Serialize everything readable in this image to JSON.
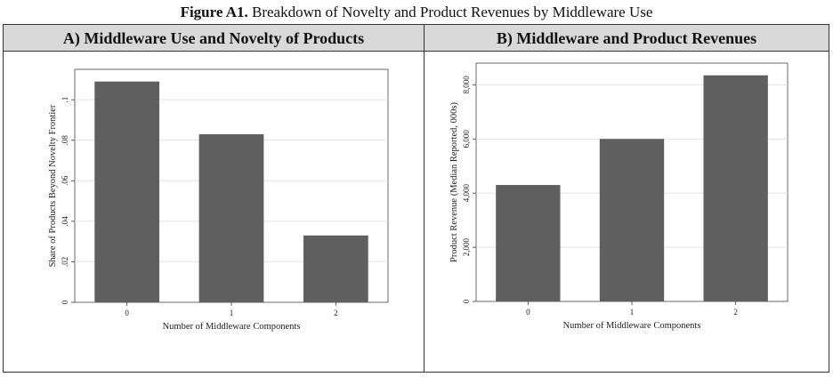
{
  "figure": {
    "label": "Figure A1.",
    "caption": "Breakdown of Novelty and Product Revenues by Middleware Use"
  },
  "chart_data": [
    {
      "type": "bar",
      "title": "A) Middleware Use and Novelty of Products",
      "categories": [
        "0",
        "1",
        "2"
      ],
      "values": [
        0.109,
        0.083,
        0.033
      ],
      "xlabel": "Number of Middleware Components",
      "ylabel": "Share of Products Beyond Novelty Frontier",
      "ylim": [
        0,
        0.115
      ],
      "yticks": [
        0,
        0.02,
        0.04,
        0.06,
        0.08,
        0.1
      ],
      "ytick_labels": [
        "0",
        ".02",
        ".04",
        ".06",
        ".08",
        ".1"
      ],
      "bar_color": "#5f5f5f",
      "grid": true
    },
    {
      "type": "bar",
      "title": "B) Middleware and Product Revenues",
      "categories": [
        "0",
        "1",
        "2"
      ],
      "values": [
        4300,
        6000,
        8350
      ],
      "xlabel": "Number of Middleware Components",
      "ylabel": "Product Revenue (Median Reported, 000s)",
      "ylim": [
        0,
        8800
      ],
      "yticks": [
        0,
        2000,
        4000,
        6000,
        8000
      ],
      "ytick_labels": [
        "0",
        "2,000",
        "4,000",
        "6,000",
        "8,000"
      ],
      "bar_color": "#5f5f5f",
      "grid": true
    }
  ]
}
